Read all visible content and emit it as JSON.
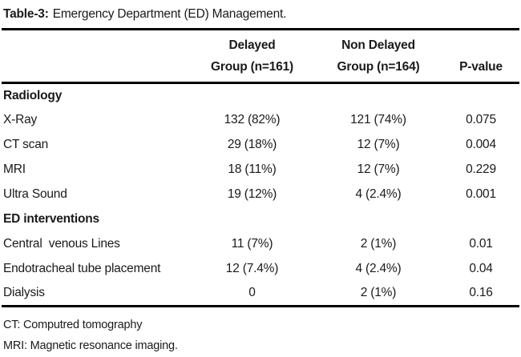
{
  "caption": {
    "label": "Table-3:",
    "text": "Emergency Department (ED) Management."
  },
  "table": {
    "header": {
      "delayed_line1": "Delayed",
      "delayed_line2": "Group (n=161)",
      "non_delayed_line1": "Non Delayed",
      "non_delayed_line2": "Group (n=164)",
      "p_value": "P-value"
    },
    "rows": [
      {
        "label": "Radiology",
        "section": true,
        "delayed": "",
        "non_delayed": "",
        "p": ""
      },
      {
        "label": "X-Ray",
        "section": false,
        "delayed": "132 (82%)",
        "non_delayed": "121 (74%)",
        "p": "0.075"
      },
      {
        "label": "CT scan",
        "section": false,
        "delayed": "29 (18%)",
        "non_delayed": "12 (7%)",
        "p": "0.004"
      },
      {
        "label": "MRI",
        "section": false,
        "delayed": "18 (11%)",
        "non_delayed": "12 (7%)",
        "p": "0.229"
      },
      {
        "label": "Ultra Sound",
        "section": false,
        "delayed": "19 (12%)",
        "non_delayed": "4 (2.4%)",
        "p": "0.001"
      },
      {
        "label": "ED interventions",
        "section": true,
        "delayed": "",
        "non_delayed": "",
        "p": ""
      },
      {
        "label": "Central  venous Lines",
        "section": false,
        "delayed": "11 (7%)",
        "non_delayed": "2 (1%)",
        "p": "0.01"
      },
      {
        "label": "Endotracheal tube placement",
        "section": false,
        "delayed": "12 (7.4%)",
        "non_delayed": "4 (2.4%)",
        "p": "0.04"
      },
      {
        "label": "Dialysis",
        "section": false,
        "delayed": "0",
        "non_delayed": "2 (1%)",
        "p": "0.16"
      }
    ],
    "footnotes": [
      "CT: Computred tomography",
      "MRI: Magnetic resonance imaging."
    ]
  }
}
